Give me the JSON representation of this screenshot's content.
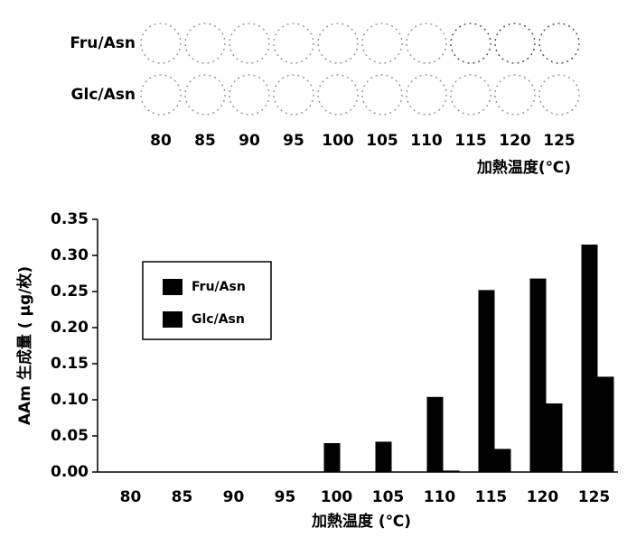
{
  "photo_panel": {
    "rows": [
      "Fru/Asn",
      "Glc/Asn"
    ],
    "temperatures": [
      80,
      85,
      90,
      95,
      100,
      105,
      110,
      115,
      120,
      125
    ],
    "xlabel": "加熱温度(℃)"
  },
  "chart_data": {
    "type": "bar",
    "xlabel": "加熱温度 (℃)",
    "ylabel": "AAm 生成量 ( μg/枚)",
    "categories": [
      "80",
      "85",
      "90",
      "95",
      "100",
      "105",
      "110",
      "115",
      "120",
      "125"
    ],
    "series": [
      {
        "name": "Fru/Asn",
        "color": "#000000",
        "values": [
          0,
          0,
          0,
          0,
          0.04,
          0.042,
          0.104,
          0.252,
          0.268,
          0.315
        ]
      },
      {
        "name": "Glc/Asn",
        "color": "#000000",
        "values": [
          0,
          0,
          0,
          0,
          0,
          0,
          0.002,
          0.032,
          0.095,
          0.132
        ]
      }
    ],
    "ylim": [
      0,
      0.35
    ],
    "yticks": [
      {
        "value": 0,
        "label": "0.00"
      },
      {
        "value": 0.05,
        "label": "0.05"
      },
      {
        "value": 0.1,
        "label": "0.10"
      },
      {
        "value": 0.15,
        "label": "0.15"
      },
      {
        "value": 0.2,
        "label": "0.20"
      },
      {
        "value": 0.25,
        "label": "0.25"
      },
      {
        "value": 0.3,
        "label": "0.30"
      },
      {
        "value": 0.35,
        "label": "0.35"
      }
    ],
    "grid": false,
    "legend": "upper-left"
  }
}
